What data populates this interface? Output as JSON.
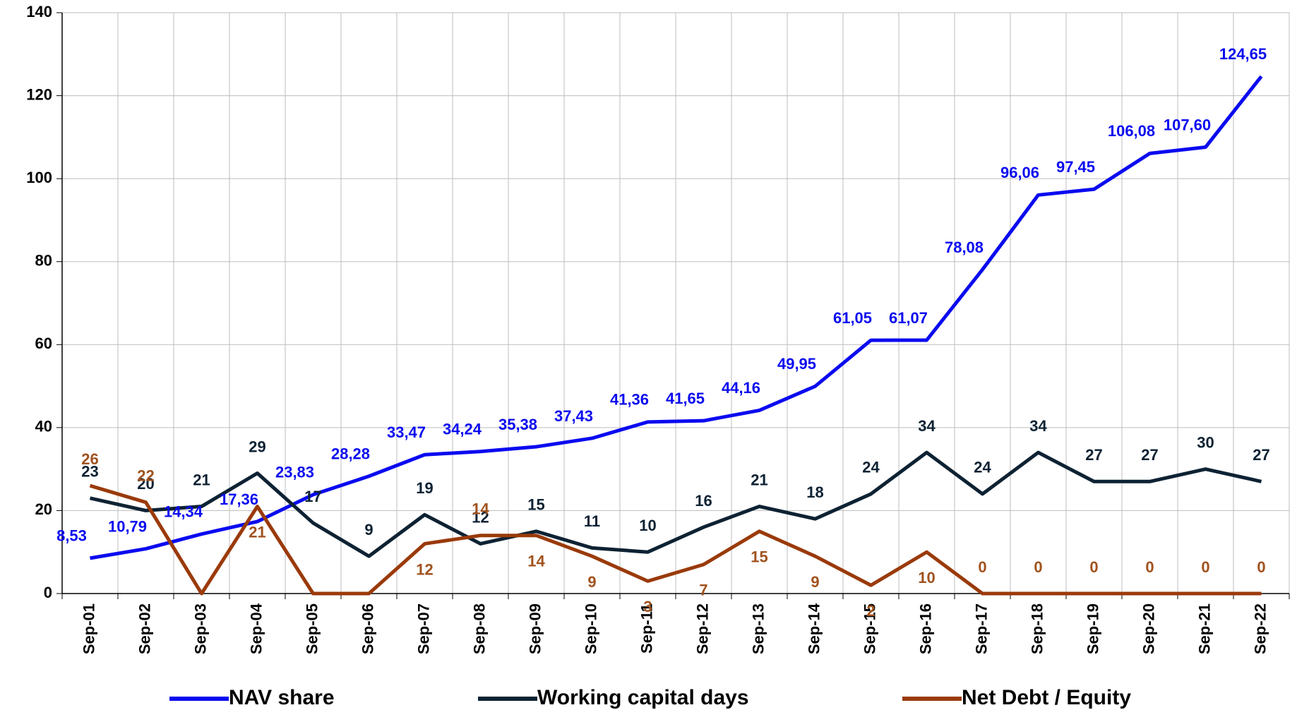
{
  "chart_data": {
    "type": "line",
    "categories": [
      "Sep-01",
      "Sep-02",
      "Sep-03",
      "Sep-04",
      "Sep-05",
      "Sep-06",
      "Sep-07",
      "Sep-08",
      "Sep-09",
      "Sep-10",
      "Sep-11",
      "Sep-12",
      "Sep-13",
      "Sep-14",
      "Sep-15",
      "Sep-16",
      "Sep-17",
      "Sep-18",
      "Sep-19",
      "Sep-20",
      "Sep-21",
      "Sep-22"
    ],
    "series": [
      {
        "name": "NAV share",
        "color": "#0a0af0",
        "values": [
          8.53,
          10.79,
          14.34,
          17.36,
          23.83,
          28.28,
          33.47,
          34.24,
          35.38,
          37.43,
          41.36,
          41.65,
          44.16,
          49.95,
          61.05,
          61.07,
          78.08,
          96.06,
          97.45,
          106.08,
          107.6,
          124.65
        ],
        "value_labels": [
          "8,53",
          "10,79",
          "14,34",
          "17,36",
          "23,83",
          "28,28",
          "33,47",
          "34,24",
          "35,38",
          "37,43",
          "41,36",
          "41,65",
          "44,16",
          "49,95",
          "61,05",
          "61,07",
          "78,08",
          "96,06",
          "97,45",
          "106,08",
          "107,60",
          "124,65"
        ]
      },
      {
        "name": "Working capital days",
        "color": "#0d2233",
        "values": [
          23,
          20,
          21,
          29,
          17,
          9,
          19,
          12,
          15,
          11,
          10,
          16,
          21,
          18,
          24,
          34,
          24,
          34,
          27,
          27,
          30,
          27
        ]
      },
      {
        "name": "Net Debt / Equity",
        "color": "#9a3a0a",
        "values": [
          26,
          22,
          0,
          21,
          0,
          0,
          12,
          14,
          14,
          9,
          3,
          7,
          15,
          9,
          2,
          10,
          0,
          0,
          0,
          0,
          0,
          0
        ],
        "value_labels": [
          "26",
          "22",
          null,
          "21",
          null,
          null,
          "12",
          "14",
          "14",
          "9",
          "3",
          "7",
          "15",
          "9",
          "2",
          "10",
          "0",
          "0",
          "0",
          "0",
          "0",
          "0"
        ]
      }
    ],
    "ylim": [
      0,
      140
    ],
    "yticks": [
      0,
      20,
      40,
      60,
      80,
      100,
      120,
      140
    ],
    "grid": true,
    "legend": "bottom"
  }
}
